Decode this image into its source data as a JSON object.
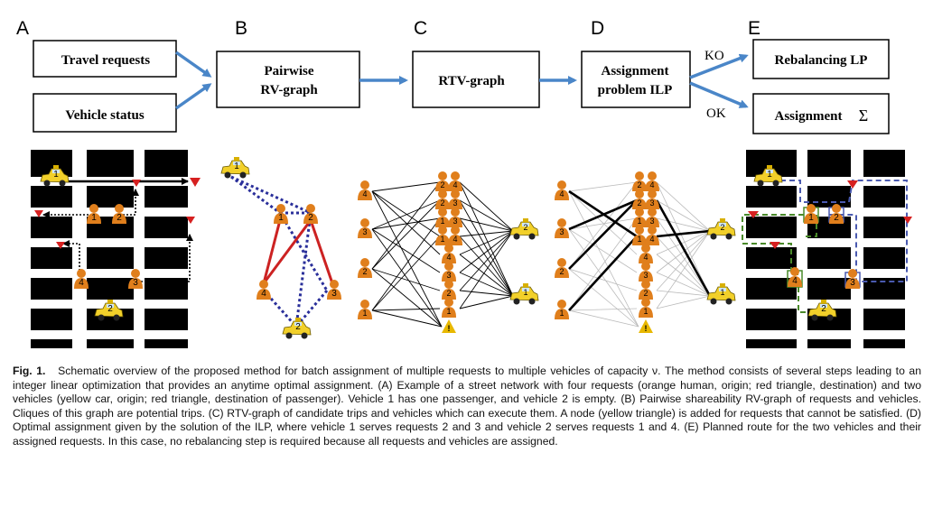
{
  "panel_letters": {
    "a": "A",
    "b": "B",
    "c": "C",
    "d": "D",
    "e": "E"
  },
  "flow": {
    "travel_requests": "Travel requests",
    "vehicle_status": "Vehicle status",
    "pairwise_line1": "Pairwise",
    "pairwise_line2": "RV-graph",
    "rtv_graph": "RTV-graph",
    "assignment_line1": "Assignment",
    "assignment_line2": "problem ILP",
    "ko_label": "KO",
    "ok_label": "OK",
    "rebalancing_lp": "Rebalancing LP",
    "assignment_out": "Assignment",
    "sigma": "Σ"
  },
  "nodes": {
    "req1": "1",
    "req2": "2",
    "req3": "3",
    "req4": "4",
    "veh1": "1",
    "veh2": "2",
    "unassigned": "!"
  },
  "caption": {
    "label": "Fig. 1.",
    "text": "Schematic overview of the proposed method for batch assignment of multiple requests to multiple vehicles of capacity ν. The method consists of several steps leading to an integer linear optimization that provides an anytime optimal assignment. (A) Example of a street network with four requests (orange human, origin; red triangle, destination) and two vehicles (yellow car, origin; red triangle, destination of passenger). Vehicle 1 has one passenger, and vehicle 2 is empty. (B) Pairwise shareability RV-graph of requests and vehicles. Cliques of this graph are potential trips. (C) RTV-graph of candidate trips and vehicles which can execute them. A node (yellow triangle) is added for requests that cannot be satisfied. (D) Optimal assignment given by the solution of the ILP, where vehicle 1 serves requests 2 and 3 and vehicle 2 serves requests 1 and 4. (E) Planned route for the two vehicles and their assigned requests. In this case, no rebalancing step is required because all requests and vehicles are assigned."
  },
  "colors": {
    "arrow": "#4a86c8",
    "person": "#e07f1c",
    "taxi": "#f2d02a",
    "red_edge": "#cc2222",
    "blue_edge": "#2a2f9a",
    "green_route": "#4a8a2a",
    "triangle": "#e8b800",
    "destination": "#d62020"
  }
}
